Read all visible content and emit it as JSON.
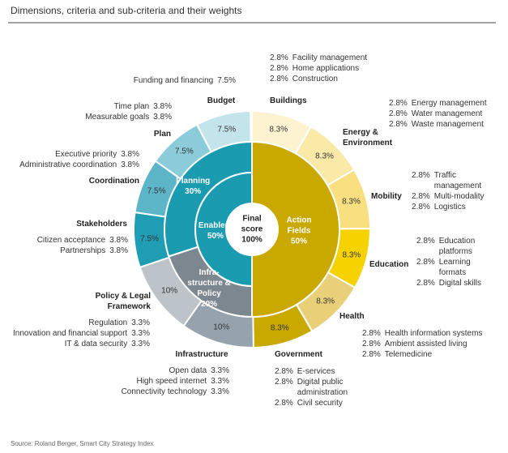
{
  "chart_data": {
    "type": "sunburst",
    "subtitle": "Dimensions, criteria and sub-criteria and their weights",
    "source": "Source: Roland Berger, Smart City Strategy Index",
    "center": {
      "name": "Final score",
      "value": 100,
      "value_label": "100%"
    },
    "inner": [
      {
        "name": "Action Fields",
        "value": 50,
        "value_label": "50%",
        "color": "#c9a800"
      },
      {
        "name": "Enablers",
        "value": 50,
        "value_label": "50%",
        "color": "#1a9bb0"
      }
    ],
    "middle": [
      {
        "name": "Infra-structure & Policy",
        "value": 20,
        "value_label": "20%",
        "color": "#7d8790"
      },
      {
        "name": "Planning",
        "value": 30,
        "value_label": "30%",
        "color": "#1a9bb0"
      }
    ],
    "outer": [
      {
        "name": "Buildings",
        "value": 8.3,
        "value_label": "8.3%",
        "color": "#fdf3d0",
        "subcriteria": [
          {
            "name": "Facility management",
            "value": 2.8,
            "value_label": "2.8%"
          },
          {
            "name": "Home applications",
            "value": 2.8,
            "value_label": "2.8%"
          },
          {
            "name": "Construction",
            "value": 2.8,
            "value_label": "2.8%"
          }
        ]
      },
      {
        "name": "Energy & Environment",
        "value": 8.3,
        "value_label": "8.3%",
        "color": "#fbe9a8",
        "subcriteria": [
          {
            "name": "Energy management",
            "value": 2.8,
            "value_label": "2.8%"
          },
          {
            "name": "Water management",
            "value": 2.8,
            "value_label": "2.8%"
          },
          {
            "name": "Waste management",
            "value": 2.8,
            "value_label": "2.8%"
          }
        ]
      },
      {
        "name": "Mobility",
        "value": 8.3,
        "value_label": "8.3%",
        "color": "#f9df80",
        "subcriteria": [
          {
            "name": "Traffic management",
            "value": 2.8,
            "value_label": "2.8%"
          },
          {
            "name": "Multi-modality",
            "value": 2.8,
            "value_label": "2.8%"
          },
          {
            "name": "Logistics",
            "value": 2.8,
            "value_label": "2.8%"
          }
        ]
      },
      {
        "name": "Education",
        "value": 8.3,
        "value_label": "8.3%",
        "color": "#f6d200",
        "subcriteria": [
          {
            "name": "Education platforms",
            "value": 2.8,
            "value_label": "2.8%"
          },
          {
            "name": "Learning formats",
            "value": 2.8,
            "value_label": "2.8%"
          },
          {
            "name": "Digital skills",
            "value": 2.8,
            "value_label": "2.8%"
          }
        ]
      },
      {
        "name": "Health",
        "value": 8.3,
        "value_label": "8.3%",
        "color": "#e8cf78",
        "subcriteria": [
          {
            "name": "Health information systems",
            "value": 2.8,
            "value_label": "2.8%"
          },
          {
            "name": "Ambient assisted living",
            "value": 2.8,
            "value_label": "2.8%"
          },
          {
            "name": "Telemedicine",
            "value": 2.8,
            "value_label": "2.8%"
          }
        ]
      },
      {
        "name": "Government",
        "value": 8.3,
        "value_label": "8.3%",
        "color": "#c9a800",
        "subcriteria": [
          {
            "name": "E-services",
            "value": 2.8,
            "value_label": "2.8%"
          },
          {
            "name": "Digital public administration",
            "value": 2.8,
            "value_label": "2.8%"
          },
          {
            "name": "Civil security",
            "value": 2.8,
            "value_label": "2.8%"
          }
        ]
      },
      {
        "name": "Infrastructure",
        "value": 10,
        "value_label": "10%",
        "color": "#97a3ac",
        "subcriteria": [
          {
            "name": "Open data",
            "value": 3.3,
            "value_label": "3.3%"
          },
          {
            "name": "High speed internet",
            "value": 3.3,
            "value_label": "3.3%"
          },
          {
            "name": "Connectivity technology",
            "value": 3.3,
            "value_label": "3.3%"
          }
        ]
      },
      {
        "name": "Policy & Legal Framework",
        "value": 10,
        "value_label": "10%",
        "color": "#bcc4ca",
        "subcriteria": [
          {
            "name": "Regulation",
            "value": 3.3,
            "value_label": "3.3%"
          },
          {
            "name": "Innovation and financial support",
            "value": 3.3,
            "value_label": "3.3%"
          },
          {
            "name": "IT & data security",
            "value": 3.3,
            "value_label": "3.3%"
          }
        ]
      },
      {
        "name": "Stakeholders",
        "value": 7.5,
        "value_label": "7.5%",
        "color": "#1f9db4",
        "subcriteria": [
          {
            "name": "Citizen acceptance",
            "value": 3.8,
            "value_label": "3.8%"
          },
          {
            "name": "Partnerships",
            "value": 3.8,
            "value_label": "3.8%"
          }
        ]
      },
      {
        "name": "Coordination",
        "value": 7.5,
        "value_label": "7.5%",
        "color": "#5db5c8",
        "subcriteria": [
          {
            "name": "Executive priority",
            "value": 3.8,
            "value_label": "3.8%"
          },
          {
            "name": "Administrative coordination",
            "value": 3.8,
            "value_label": "3.8%"
          }
        ]
      },
      {
        "name": "Plan",
        "value": 7.5,
        "value_label": "7.5%",
        "color": "#8ccbd9",
        "subcriteria": [
          {
            "name": "Time plan",
            "value": 3.8,
            "value_label": "3.8%"
          },
          {
            "name": "Measurable goals",
            "value": 3.8,
            "value_label": "3.8%"
          }
        ]
      },
      {
        "name": "Budget",
        "value": 7.5,
        "value_label": "7.5%",
        "color": "#c4e4ec",
        "subcriteria": [
          {
            "name": "Funding and financing",
            "value": 7.5,
            "value_label": "7.5%"
          }
        ]
      }
    ]
  }
}
